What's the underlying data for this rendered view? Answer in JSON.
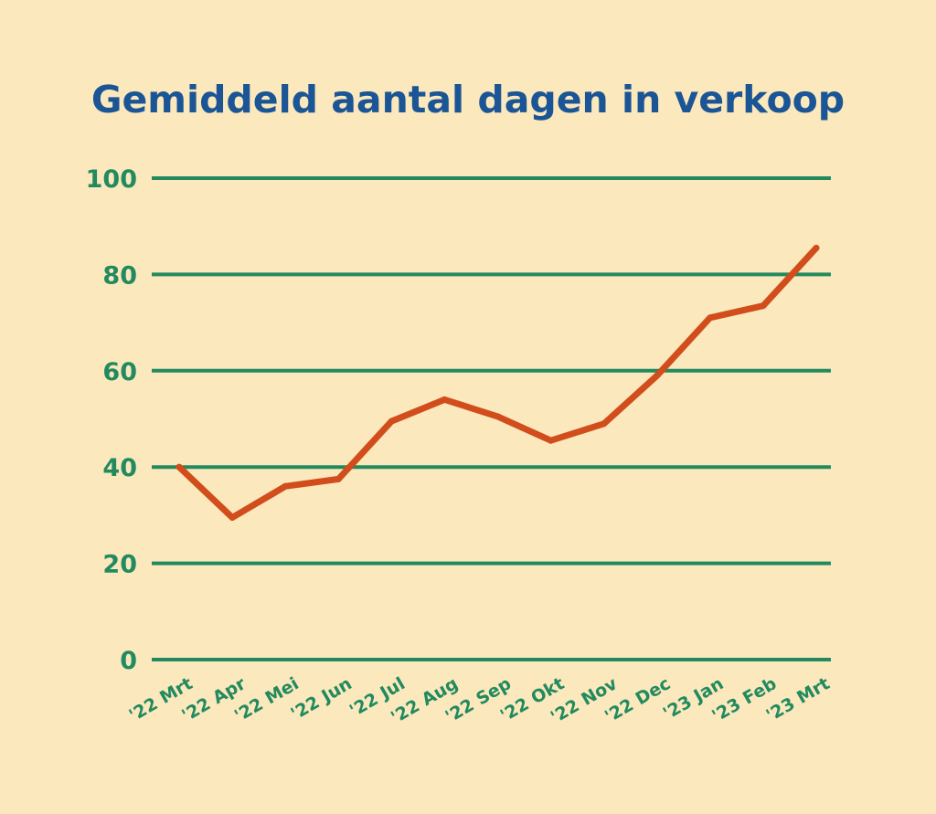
{
  "colors": {
    "background": "#fbe8bd",
    "title": "#1b5596",
    "grid": "#228a5e",
    "tick_labels": "#228a5e",
    "line": "#d14d1c"
  },
  "chart_data": {
    "type": "line",
    "title": "Gemiddeld aantal dagen in verkoop",
    "xlabel": "",
    "ylabel": "",
    "categories": [
      "'22 Mrt",
      "'22 Apr",
      "'22 Mei",
      "'22 Jun",
      "'22 Jul",
      "'22 Aug",
      "'22 Sep",
      "'22 Okt",
      "'22 Nov",
      "'22 Dec",
      "'23 Jan",
      "'23 Feb",
      "'23 Mrt"
    ],
    "series": [
      {
        "values": [
          40,
          29.5,
          36,
          37.5,
          49.5,
          54,
          50.5,
          45.5,
          49,
          59,
          71,
          73.5,
          85.5
        ]
      }
    ],
    "ylim": [
      0,
      100
    ],
    "yticks": [
      0,
      20,
      40,
      60,
      80,
      100
    ],
    "grid": true,
    "legend": "none"
  }
}
